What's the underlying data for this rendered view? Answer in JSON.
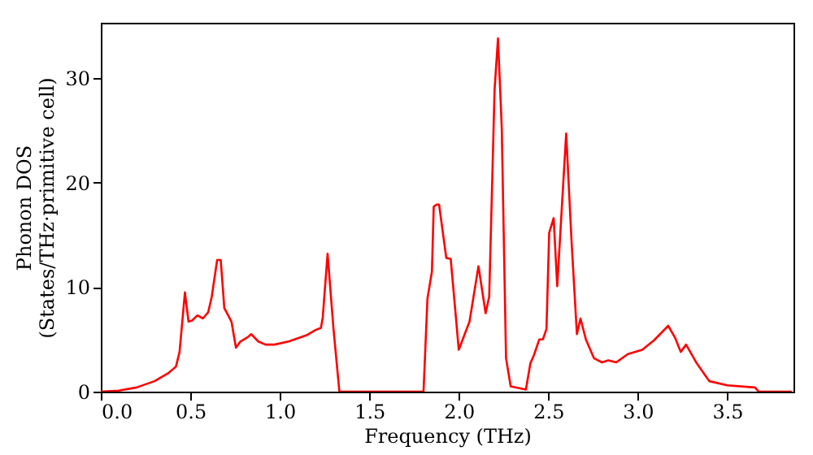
{
  "chart_data": {
    "type": "line",
    "xlabel": "Frequency (THz)",
    "ylabel": "Phonon DOS\n(States/THz·primitive cell)",
    "xlim": [
      0,
      3.87
    ],
    "ylim": [
      0,
      35.3
    ],
    "xticks": [
      {
        "value": 0,
        "label": "0.0"
      },
      0.5,
      {
        "value": 1,
        "label": "1.0"
      },
      1.5,
      {
        "value": 2,
        "label": "2.0"
      },
      2.5,
      {
        "value": 3,
        "label": "3.0"
      },
      3.5
    ],
    "yticks": [
      0,
      10,
      20,
      30
    ],
    "grid": false,
    "legend": false,
    "series": [
      {
        "color": "#ff0000",
        "x": [
          0,
          0.1,
          0.2,
          0.3,
          0.38,
          0.42,
          0.44,
          0.47,
          0.49,
          0.51,
          0.54,
          0.57,
          0.6,
          0.62,
          0.65,
          0.67,
          0.69,
          0.73,
          0.755,
          0.78,
          0.82,
          0.84,
          0.88,
          0.92,
          0.97,
          1.05,
          1.15,
          1.2,
          1.23,
          1.24,
          1.267,
          1.3,
          1.333,
          1.803,
          1.825,
          1.85,
          1.86,
          1.876,
          1.89,
          1.93,
          1.955,
          2.0,
          2.06,
          2.11,
          2.15,
          2.17,
          2.2,
          2.219,
          2.24,
          2.264,
          2.29,
          2.375,
          2.4,
          2.42,
          2.45,
          2.47,
          2.49,
          2.505,
          2.53,
          2.55,
          2.6,
          2.63,
          2.66,
          2.68,
          2.71,
          2.755,
          2.8,
          2.835,
          2.88,
          2.945,
          3.025,
          3.09,
          3.17,
          3.21,
          3.24,
          3.27,
          3.33,
          3.4,
          3.5,
          3.655,
          3.676,
          3.86
        ],
        "values": [
          0,
          0.1,
          0.4,
          1.0,
          1.8,
          2.4,
          3.8,
          9.5,
          6.7,
          6.8,
          7.3,
          7.0,
          7.6,
          9.1,
          12.6,
          12.6,
          8.0,
          6.7,
          4.2,
          4.8,
          5.2,
          5.5,
          4.8,
          4.5,
          4.5,
          4.8,
          5.4,
          5.9,
          6.1,
          7.1,
          13.2,
          6.0,
          0,
          0,
          8.9,
          11.5,
          17.7,
          17.9,
          17.9,
          12.8,
          12.7,
          4.0,
          6.7,
          12.0,
          7.5,
          9.1,
          28.9,
          33.8,
          25.3,
          3.2,
          0.5,
          0.2,
          2.7,
          3.5,
          5.0,
          5.0,
          6.0,
          15.2,
          16.6,
          10.1,
          24.7,
          14.4,
          5.5,
          7.0,
          5.0,
          3.2,
          2.8,
          3.0,
          2.8,
          3.6,
          4.0,
          4.9,
          6.3,
          5.1,
          3.8,
          4.5,
          2.7,
          1.0,
          0.6,
          0.4,
          0,
          0
        ]
      }
    ]
  }
}
